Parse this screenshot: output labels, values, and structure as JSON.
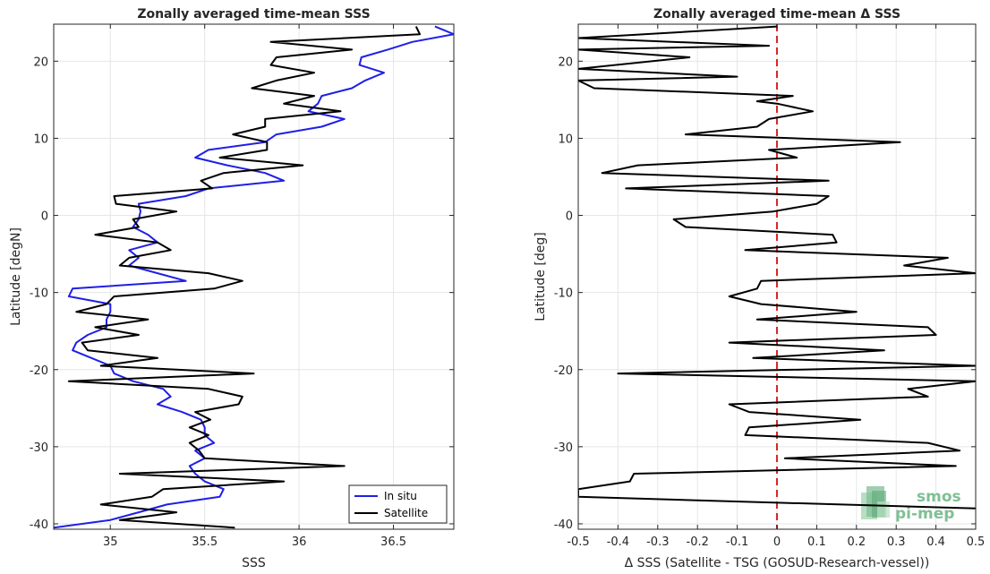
{
  "colors": {
    "in_situ": "#1f1fe6",
    "satellite": "#000000",
    "zero_line": "#d62728",
    "grid": "#e6e6e6",
    "axis": "#262626",
    "logo": "#7fbf95"
  },
  "logo": {
    "line1": "smos",
    "line2": "pi-mep"
  },
  "chart_data": [
    {
      "type": "line",
      "title": "Zonally averaged time-mean SSS",
      "xlabel": "SSS",
      "ylabel": "Latitude [degN]",
      "xlim": [
        34.7,
        36.82
      ],
      "ylim": [
        -40.7,
        24.8
      ],
      "xticks": [
        35,
        35.5,
        36,
        36.5
      ],
      "xtick_labels": [
        "35",
        "35.5",
        "36",
        "36.5"
      ],
      "yticks": [
        -40,
        -30,
        -20,
        -10,
        0,
        10,
        20
      ],
      "ytick_labels": [
        "-40",
        "-30",
        "-20",
        "-10",
        "0",
        "10",
        "20"
      ],
      "grid": true,
      "legend": {
        "position": "bottom-right",
        "entries": [
          "In situ",
          "Satellite"
        ]
      },
      "series": [
        {
          "name": "In situ",
          "color": "#1f1fe6",
          "lat": [
            24.5,
            23.5,
            22.5,
            21.5,
            20.5,
            19.5,
            18.5,
            17.5,
            16.5,
            15.5,
            14.5,
            13.5,
            12.5,
            11.5,
            10.5,
            9.5,
            8.5,
            7.5,
            6.5,
            5.5,
            4.5,
            3.5,
            2.5,
            1.5,
            0.5,
            -0.5,
            -1.5,
            -2.5,
            -3.5,
            -4.5,
            -5.5,
            -6.5,
            -7.5,
            -8.5,
            -9.5,
            -10.5,
            -11.5,
            -12.5,
            -13.5,
            -14.5,
            -15.5,
            -16.5,
            -17.5,
            -18.5,
            -19.5,
            -20.5,
            -21.5,
            -22.5,
            -23.5,
            -24.5,
            -25.5,
            -26.5,
            -27.5,
            -28.5,
            -29.5,
            -30.5,
            -31.5,
            -32.5,
            -33.5,
            -34.5,
            -35.5,
            -36.5,
            -37.5,
            -38.5,
            -39.5,
            -40.5
          ],
          "sss": [
            36.72,
            36.82,
            36.6,
            36.47,
            36.33,
            36.32,
            36.45,
            36.35,
            36.28,
            36.12,
            36.1,
            36.05,
            36.24,
            36.12,
            35.88,
            35.82,
            35.52,
            35.45,
            35.62,
            35.82,
            35.92,
            35.52,
            35.4,
            35.15,
            35.16,
            35.15,
            35.12,
            35.2,
            35.25,
            35.1,
            35.15,
            35.1,
            35.25,
            35.4,
            34.8,
            34.78,
            35.0,
            35.0,
            34.98,
            34.98,
            34.88,
            34.82,
            34.8,
            34.9,
            35.0,
            35.02,
            35.12,
            35.28,
            35.32,
            35.25,
            35.38,
            35.48,
            35.5,
            35.5,
            35.55,
            35.45,
            35.5,
            35.42,
            35.45,
            35.5,
            35.6,
            35.58,
            35.3,
            35.15,
            35.0,
            34.7
          ]
        },
        {
          "name": "Satellite",
          "color": "#000000",
          "lat": [
            24.5,
            23.5,
            22.5,
            21.5,
            20.5,
            19.5,
            18.5,
            17.5,
            16.5,
            15.5,
            14.5,
            13.5,
            12.5,
            11.5,
            10.5,
            9.5,
            8.5,
            7.5,
            6.5,
            5.5,
            4.5,
            3.5,
            2.5,
            1.5,
            0.5,
            -0.5,
            -1.5,
            -2.5,
            -3.5,
            -4.5,
            -5.5,
            -6.5,
            -7.5,
            -8.5,
            -9.5,
            -10.5,
            -11.5,
            -12.5,
            -13.5,
            -14.5,
            -15.5,
            -16.5,
            -17.5,
            -18.5,
            -19.5,
            -20.5,
            -21.5,
            -22.5,
            -23.5,
            -24.5,
            -25.5,
            -26.5,
            -27.5,
            -28.5,
            -29.5,
            -30.5,
            -31.5,
            -32.5,
            -33.5,
            -34.5,
            -35.5,
            -36.5,
            -37.5,
            -38.5,
            -39.5,
            -40.5
          ],
          "sss": [
            36.62,
            36.64,
            35.85,
            36.28,
            35.88,
            35.85,
            36.08,
            35.88,
            35.75,
            36.08,
            35.92,
            36.22,
            35.82,
            35.82,
            35.65,
            35.83,
            35.83,
            35.58,
            36.02,
            35.6,
            35.48,
            35.54,
            35.02,
            35.03,
            35.35,
            35.12,
            35.15,
            34.92,
            35.25,
            35.32,
            35.1,
            35.05,
            35.52,
            35.7,
            35.55,
            35.02,
            34.98,
            34.82,
            35.2,
            34.92,
            35.15,
            34.85,
            34.88,
            35.25,
            34.95,
            35.76,
            34.78,
            35.52,
            35.7,
            35.68,
            35.45,
            35.53,
            35.42,
            35.52,
            35.42,
            35.47,
            35.5,
            36.24,
            35.05,
            35.92,
            35.28,
            35.22,
            34.95,
            35.35,
            35.05,
            35.66
          ]
        }
      ]
    },
    {
      "type": "line",
      "title": "Zonally averaged time-mean Δ SSS",
      "xlabel": "Δ SSS (Satellite - TSG (GOSUD-Research-vessel))",
      "ylabel": "Latitude [deg]",
      "xlim": [
        -0.5,
        0.5
      ],
      "ylim": [
        -40.7,
        24.8
      ],
      "xticks": [
        -0.5,
        -0.4,
        -0.3,
        -0.2,
        -0.1,
        0,
        0.1,
        0.2,
        0.3,
        0.4,
        0.5
      ],
      "xtick_labels": [
        "-0.5",
        "-0.4",
        "-0.3",
        "-0.2",
        "-0.1",
        "0",
        "0.1",
        "0.2",
        "0.3",
        "0.4",
        "0.5"
      ],
      "yticks": [
        -40,
        -30,
        -20,
        -10,
        0,
        10,
        20
      ],
      "ytick_labels": [
        "-40",
        "-30",
        "-20",
        "-10",
        "0",
        "10",
        "20"
      ],
      "grid": true,
      "reference_line": {
        "x": 0,
        "color": "#d62728",
        "style": "dashed"
      },
      "series": [
        {
          "name": "",
          "color": "#000000",
          "lat": [
            24.5,
            23.0,
            22.0,
            21.5,
            20.5,
            19.0,
            18.0,
            17.5,
            16.5,
            15.5,
            14.8,
            14.5,
            13.5,
            12.5,
            11.5,
            10.5,
            9.5,
            8.5,
            7.5,
            6.5,
            5.5,
            4.5,
            3.5,
            2.5,
            1.5,
            0.5,
            -0.5,
            -1.5,
            -2.5,
            -3.5,
            -4.5,
            -5.5,
            -6.5,
            -7.5,
            -8.5,
            -9.5,
            -10.5,
            -11.5,
            -12.5,
            -13.5,
            -14.5,
            -15.5,
            -16.5,
            -17.5,
            -18.5,
            -19.5,
            -20.5,
            -21.5,
            -22.5,
            -23.5,
            -24.5,
            -25.5,
            -26.5,
            -27.5,
            -28.5,
            -29.5,
            -30.5,
            -31.5,
            -32.5,
            -33.5,
            -34.5,
            -35.5,
            -36.5,
            -38.0,
            -40.5
          ],
          "dsss": [
            0.0,
            -0.5,
            -0.02,
            -0.5,
            -0.22,
            -0.5,
            -0.1,
            -0.5,
            -0.46,
            0.04,
            -0.05,
            0.0,
            0.09,
            -0.02,
            -0.05,
            -0.23,
            0.31,
            -0.02,
            0.05,
            -0.35,
            -0.44,
            0.13,
            -0.38,
            0.13,
            0.1,
            -0.01,
            -0.26,
            -0.23,
            0.14,
            0.15,
            -0.08,
            0.43,
            0.32,
            0.5,
            -0.04,
            -0.05,
            -0.12,
            -0.04,
            0.2,
            -0.05,
            0.38,
            0.4,
            -0.12,
            0.27,
            -0.06,
            0.5,
            -0.4,
            0.5,
            0.33,
            0.38,
            -0.12,
            -0.07,
            0.21,
            -0.07,
            -0.08,
            0.38,
            0.46,
            0.02,
            0.45,
            -0.36,
            -0.37,
            -0.5,
            -0.5,
            0.5
          ]
        }
      ]
    }
  ]
}
